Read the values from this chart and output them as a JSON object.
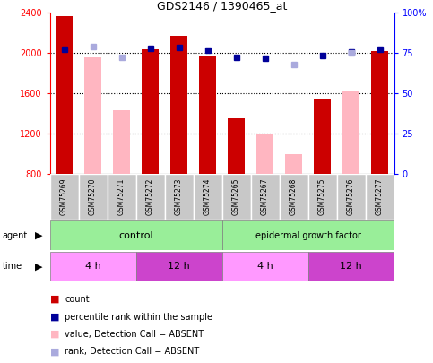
{
  "title": "GDS2146 / 1390465_at",
  "samples": [
    "GSM75269",
    "GSM75270",
    "GSM75271",
    "GSM75272",
    "GSM75273",
    "GSM75274",
    "GSM75265",
    "GSM75267",
    "GSM75268",
    "GSM75275",
    "GSM75276",
    "GSM75277"
  ],
  "red_bars": [
    2370,
    null,
    null,
    2040,
    2175,
    1975,
    1350,
    null,
    null,
    1540,
    null,
    2020
  ],
  "pink_bars": [
    null,
    1960,
    1430,
    null,
    null,
    null,
    null,
    1200,
    1000,
    null,
    1620,
    null
  ],
  "blue_squares_left_val": [
    2040,
    null,
    null,
    2045,
    2055,
    2030,
    1960,
    1950,
    null,
    1975,
    2010,
    2040
  ],
  "light_blue_squares_left_val": [
    null,
    2065,
    1955,
    null,
    null,
    null,
    null,
    null,
    1890,
    null,
    2005,
    null
  ],
  "ylim_left": [
    800,
    2400
  ],
  "ylim_right": [
    0,
    100
  ],
  "yticks_left": [
    800,
    1200,
    1600,
    2000,
    2400
  ],
  "yticks_right": [
    0,
    25,
    50,
    75,
    100
  ],
  "color_red": "#CC0000",
  "color_pink": "#FFB6C1",
  "color_blue": "#000099",
  "color_light_blue": "#AAAADD",
  "color_green_light": "#99EE99",
  "color_magenta_light": "#FF99FF",
  "color_magenta_dark": "#CC44CC",
  "color_gray": "#C8C8C8",
  "bar_width": 0.6
}
